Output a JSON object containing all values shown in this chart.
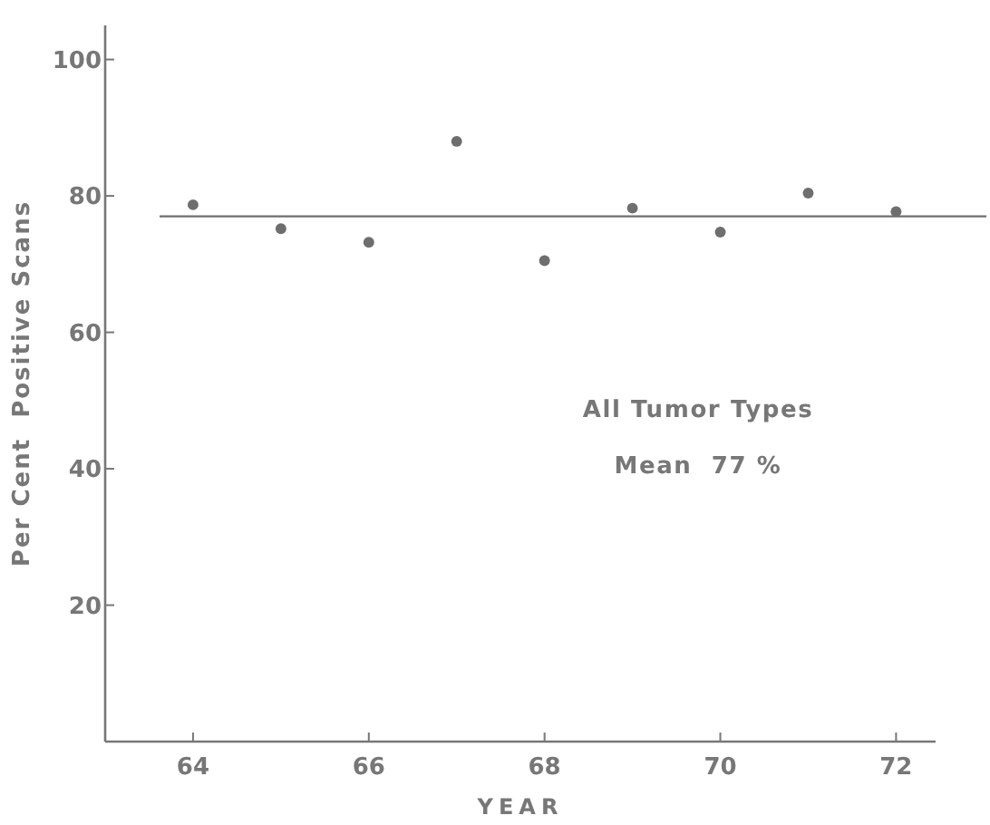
{
  "chart_data": {
    "type": "scatter",
    "xlabel": "YEAR",
    "ylabel": "Per Cent  Positive Scans",
    "x": [
      64,
      65,
      66,
      67,
      68,
      69,
      70,
      71,
      72
    ],
    "series": [
      {
        "color": "#6e6e6e",
        "values": [
          78.7,
          75.2,
          73.2,
          88.0,
          70.5,
          78.2,
          74.7,
          80.4,
          77.7
        ]
      }
    ],
    "xlim": [
      63,
      72.45
    ],
    "xticks": [
      64,
      66,
      68,
      70,
      72
    ],
    "ylim": [
      0,
      105
    ],
    "yticks": [
      20,
      40,
      60,
      80,
      100
    ],
    "ref_lines": [
      {
        "axis": "y",
        "value": 77,
        "color": "#6e6e6e"
      }
    ],
    "annotations": [
      "All Tumor Types",
      "Mean  77 %"
    ],
    "marker": "circle",
    "grid": false
  }
}
